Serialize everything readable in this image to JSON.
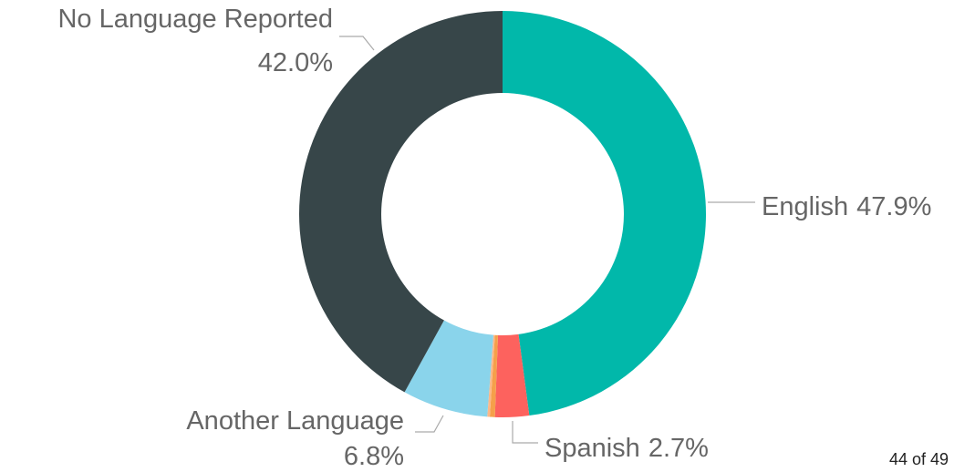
{
  "chart_data": {
    "type": "donut",
    "categories": [
      "English",
      "Spanish",
      null,
      null,
      "Another Language",
      "No Language Reported"
    ],
    "values": [
      47.9,
      2.7,
      0.4,
      0.2,
      6.8,
      42.0
    ],
    "value_labels": [
      "47.9%",
      "2.7%",
      null,
      null,
      "6.8%",
      "42.0%"
    ],
    "colors": [
      "#01b8aa",
      "#fd625e",
      "#f5a04a",
      "#fcb88a",
      "#8ad4eb",
      "#374649"
    ]
  },
  "page_label": "44 of 49"
}
